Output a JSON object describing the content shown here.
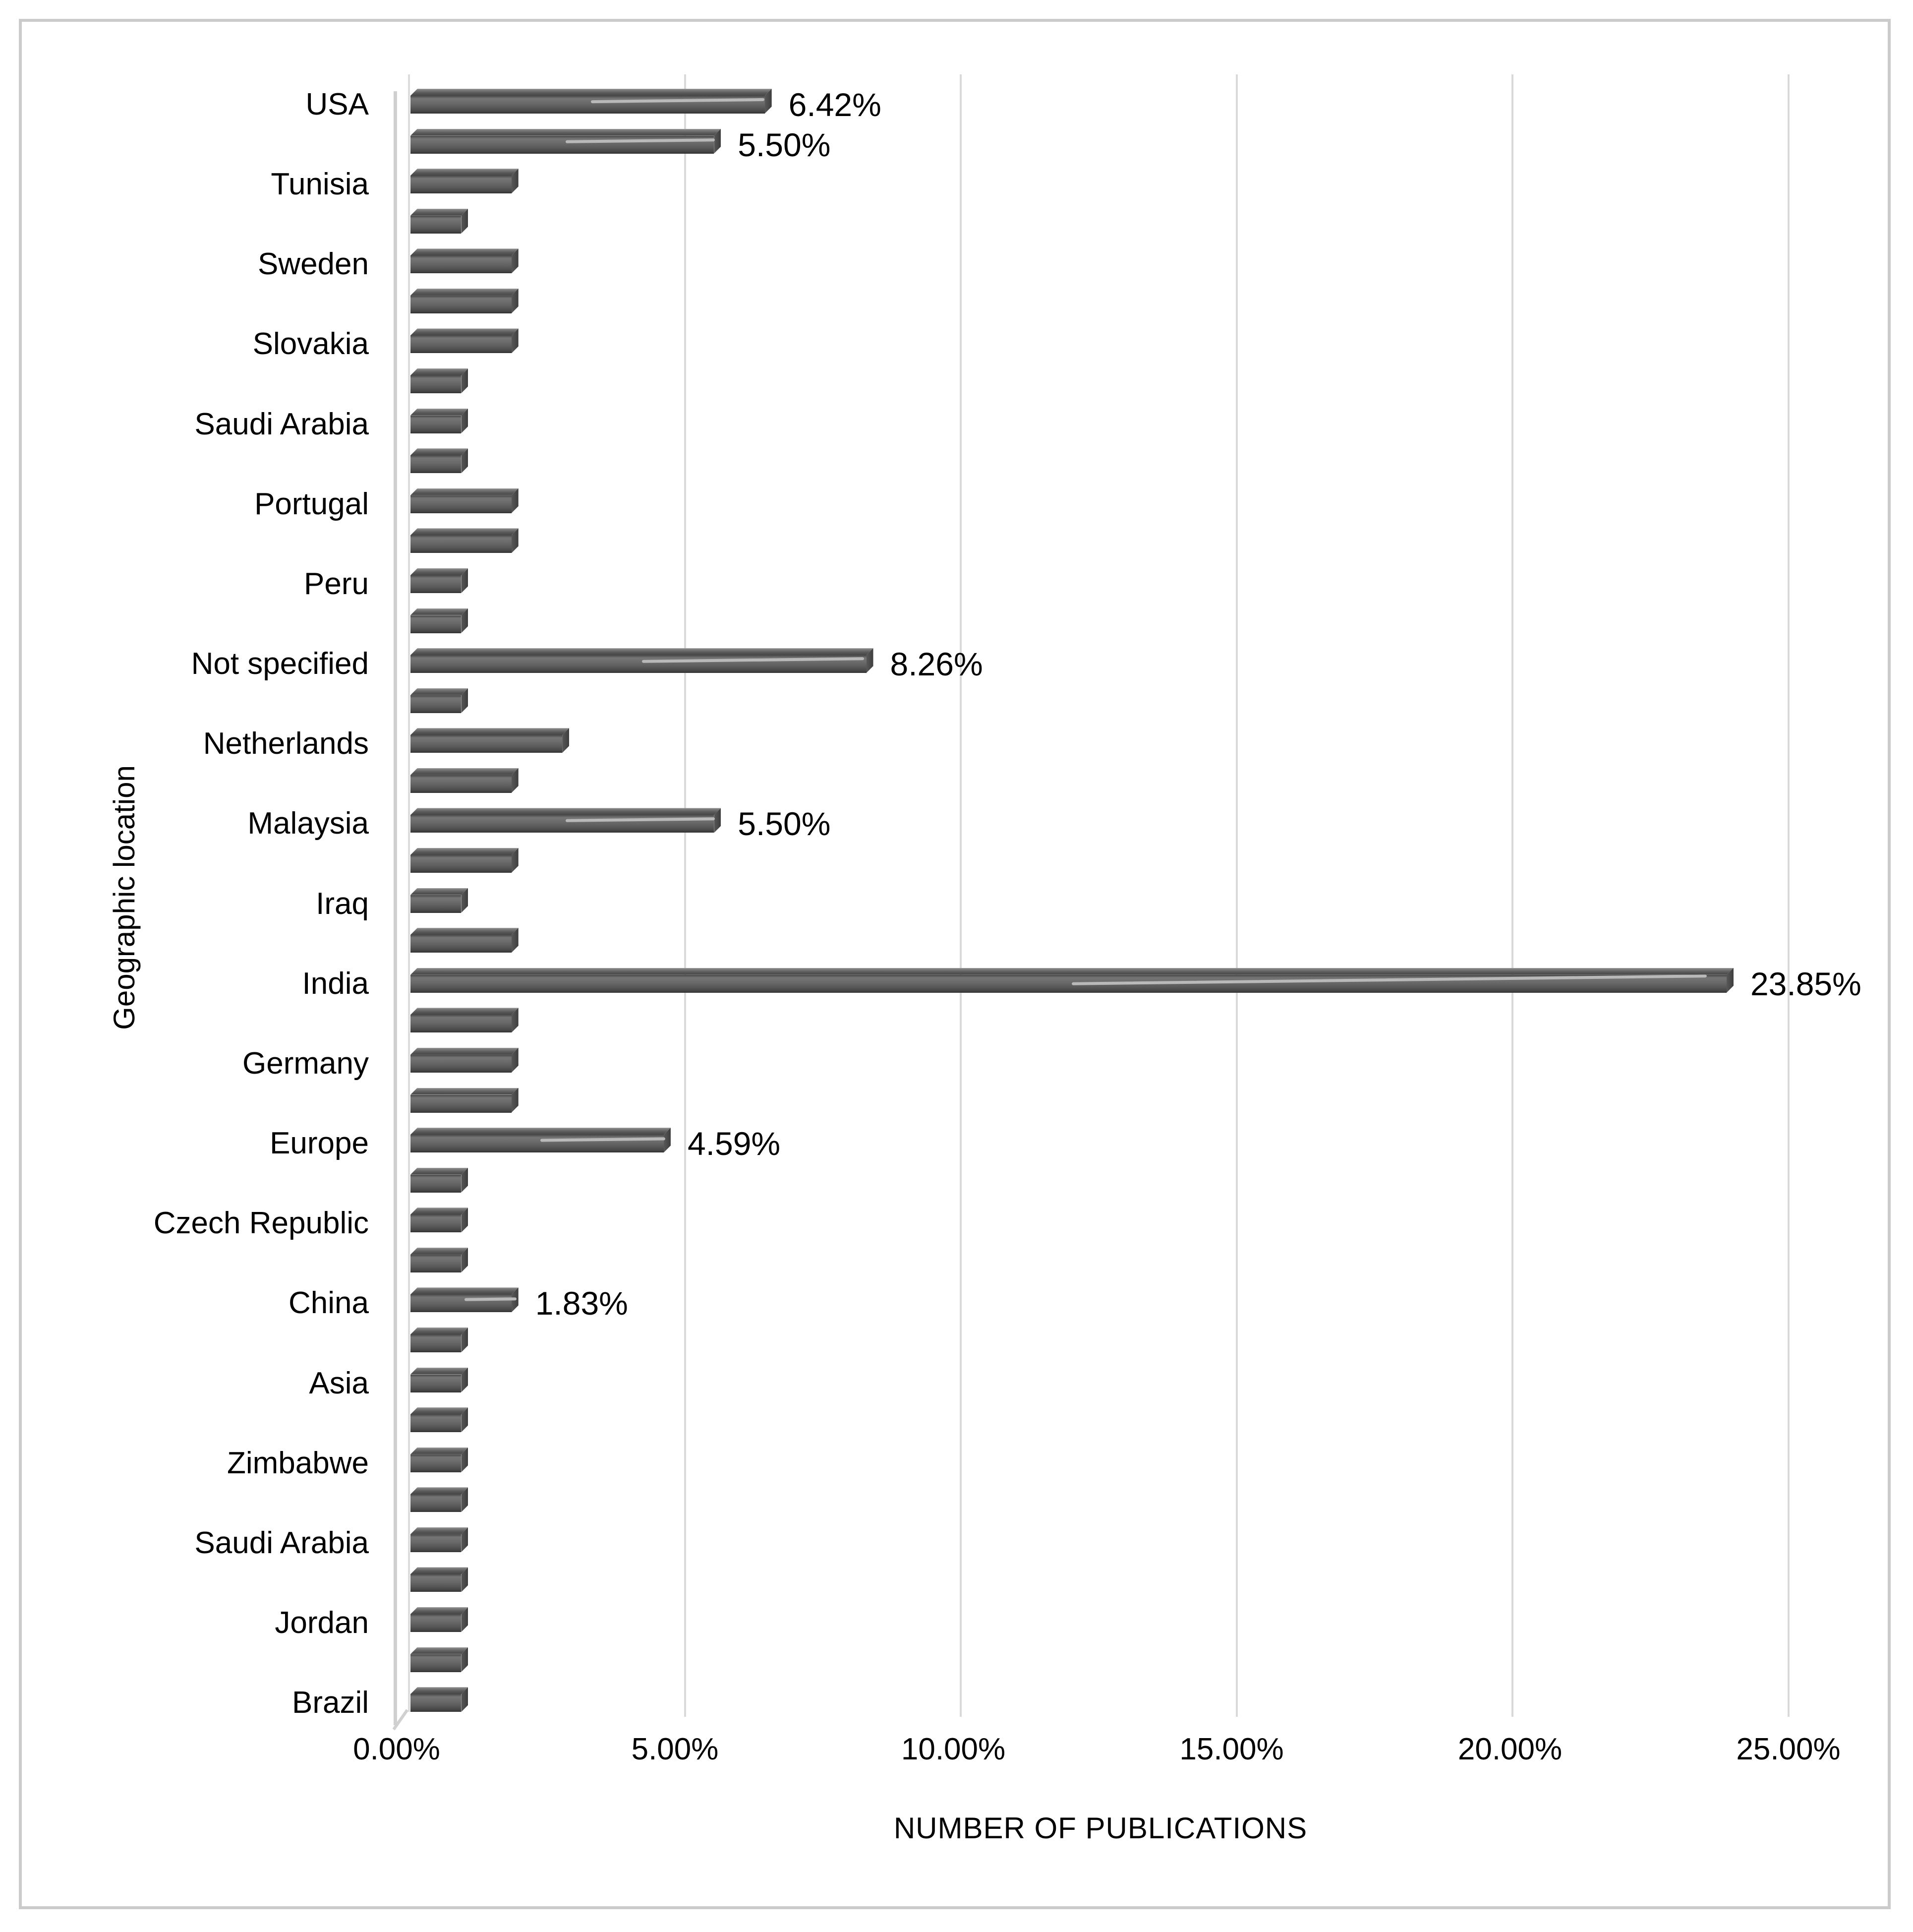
{
  "chart_data": {
    "type": "bar",
    "orientation": "horizontal",
    "title": "",
    "xlabel": "NUMBER OF PUBLICATIONS",
    "ylabel": "Geographic location",
    "x_ticks": [
      "0.00%",
      "5.00%",
      "10.00%",
      "15.00%",
      "20.00%",
      "25.00%"
    ],
    "xlim": [
      0,
      25
    ],
    "grid": true,
    "legend": false,
    "bar_color": "#595959",
    "gridline_color": "#d9d9d9",
    "leader_line_color": "#b9b9b9",
    "categories": [
      "USA",
      "",
      "Tunisia",
      "",
      "Sweden",
      "",
      "Slovakia",
      "",
      "Saudi Arabia",
      "",
      "Portugal",
      "",
      "Peru",
      "",
      "Not specified",
      "",
      "Netherlands",
      "",
      "Malaysia",
      "",
      "Iraq",
      "",
      "India",
      "",
      "Germany",
      "",
      "Europe",
      "",
      "Czech Republic",
      "",
      "China",
      "",
      "Asia",
      "",
      "Zimbabwe",
      "",
      "Saudi Arabia",
      "",
      "Jordan",
      "",
      "Brazil"
    ],
    "values": [
      6.42,
      5.5,
      1.83,
      0.92,
      1.83,
      1.83,
      1.83,
      0.92,
      0.92,
      0.92,
      1.83,
      1.83,
      0.92,
      0.92,
      8.26,
      0.92,
      2.75,
      1.83,
      5.5,
      1.83,
      0.92,
      1.83,
      23.85,
      1.83,
      1.83,
      1.83,
      4.59,
      0.92,
      0.92,
      0.92,
      1.83,
      0.92,
      0.92,
      0.92,
      0.92,
      0.92,
      0.92,
      0.92,
      0.92,
      0.92,
      0.92
    ],
    "data_labels": [
      "6.42%",
      "5.50%",
      "",
      "",
      "",
      "",
      "",
      "",
      "",
      "",
      "",
      "",
      "",
      "",
      "8.26%",
      "",
      "",
      "",
      "5.50%",
      "",
      "",
      "",
      "23.85%",
      "",
      "",
      "",
      "4.59%",
      "",
      "",
      "",
      "1.83%",
      "",
      "",
      "",
      "",
      "",
      "",
      "",
      "",
      "",
      ""
    ]
  }
}
